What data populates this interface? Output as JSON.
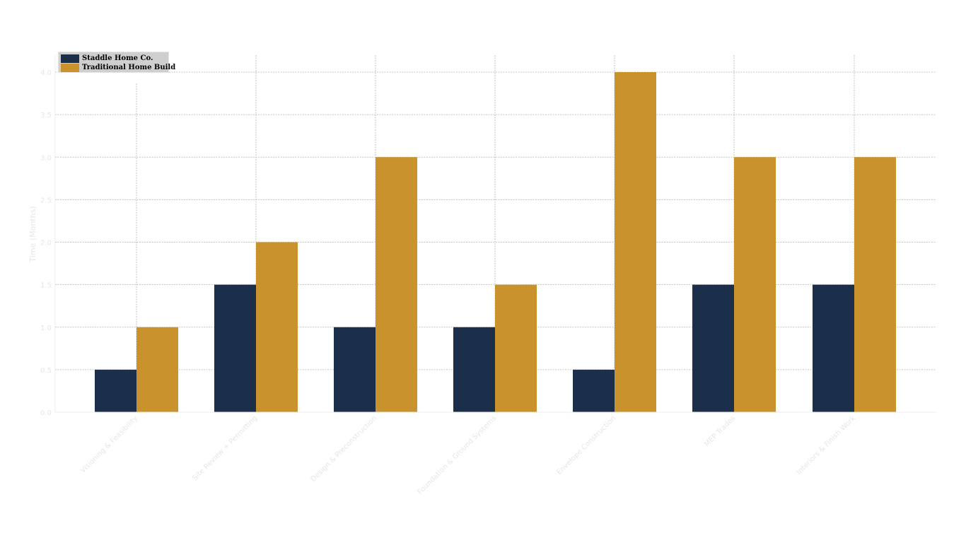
{
  "chart_data": {
    "type": "bar",
    "title": "",
    "xlabel": "",
    "ylabel": "Time (Months)",
    "ylim": [
      0,
      4.2
    ],
    "yticks": [
      "0.0",
      "0.5",
      "1.0",
      "1.5",
      "2.0",
      "2.5",
      "3.0",
      "3.5",
      "4.0"
    ],
    "grid": true,
    "legend_position": "top-left",
    "categories": [
      "Visioning & Feasibility",
      "Site Review + Permitting",
      "Design & Preconstruction",
      "Foundation & Ground Systems",
      "Envelope Construction",
      "MEP Trades",
      "Interiors & Finish Work"
    ],
    "series": [
      {
        "name": "Staddle Home Co.",
        "color": "#1c2f4a",
        "values": [
          0.5,
          1.5,
          1.0,
          1.0,
          0.5,
          1.5,
          1.5
        ]
      },
      {
        "name": "Traditional Home Build",
        "color": "#c9922c",
        "values": [
          1.0,
          2.0,
          3.0,
          1.5,
          4.0,
          3.0,
          3.0
        ]
      }
    ]
  }
}
